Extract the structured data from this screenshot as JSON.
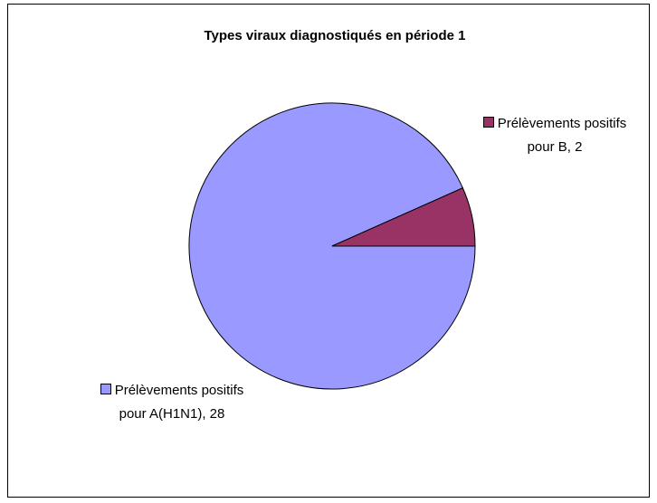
{
  "chart_data": {
    "type": "pie",
    "title": "Types viraux diagnostiqués en période 1",
    "values": [
      28,
      2
    ],
    "value_labels": [
      "Prélèvements positifs pour A(H1N1), 28",
      "Prélèvements positifs pour B, 2"
    ],
    "colors": [
      "#9999ff",
      "#993366"
    ]
  }
}
